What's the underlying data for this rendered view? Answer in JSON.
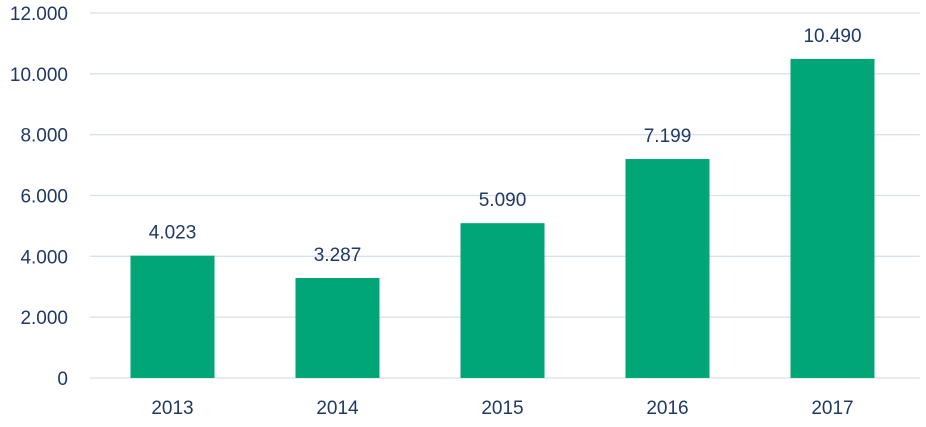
{
  "colors": {
    "bar": "#00A676",
    "text": "#1F3864",
    "grid": "#D9E1EA"
  },
  "chart_data": {
    "type": "bar",
    "categories": [
      "2013",
      "2014",
      "2015",
      "2016",
      "2017"
    ],
    "values": [
      4023,
      3287,
      5090,
      7199,
      10490
    ],
    "value_labels": [
      "4.023",
      "3.287",
      "5.090",
      "7.199",
      "10.490"
    ],
    "y_ticks": [
      0,
      2000,
      4000,
      6000,
      8000,
      10000,
      12000
    ],
    "y_tick_labels": [
      "0",
      "2.000",
      "4.000",
      "6.000",
      "8.000",
      "10.000",
      "12.000"
    ],
    "ylim": [
      0,
      12000
    ],
    "grid": true,
    "legend": "none",
    "title": "",
    "xlabel": "",
    "ylabel": ""
  }
}
